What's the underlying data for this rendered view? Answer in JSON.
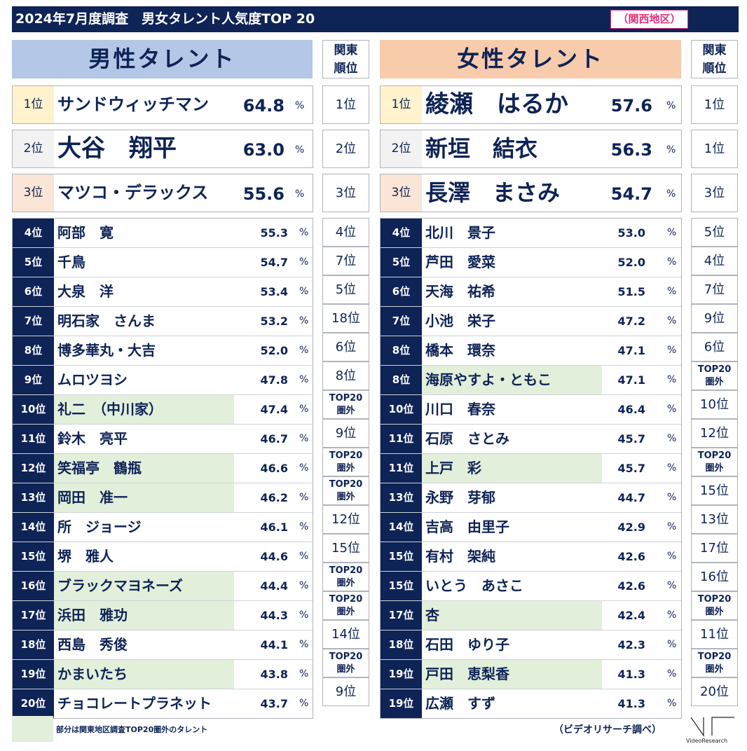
{
  "title": "2024年7月度調査　男女タレント人気度TOP 20",
  "region": "（関西地区）",
  "kanto_header": [
    "関東",
    "順位"
  ],
  "pct": "%",
  "male": {
    "header": "男性タレント",
    "top3": [
      {
        "rank": "1位",
        "name": "サンドウィッチマン",
        "score": "64.8",
        "kanto": "1位"
      },
      {
        "rank": "2位",
        "name": "大谷　翔平",
        "score": "63.0",
        "kanto": "2位"
      },
      {
        "rank": "3位",
        "name": "マツコ・デラックス",
        "score": "55.6",
        "kanto": "3位"
      }
    ],
    "rows": [
      {
        "rank": "4位",
        "name": "阿部　寛",
        "score": "55.3",
        "kanto": "4位"
      },
      {
        "rank": "5位",
        "name": "千鳥",
        "score": "54.7",
        "kanto": "7位"
      },
      {
        "rank": "6位",
        "name": "大泉　洋",
        "score": "53.4",
        "kanto": "5位"
      },
      {
        "rank": "7位",
        "name": "明石家　さんま",
        "score": "53.2",
        "kanto": "18位"
      },
      {
        "rank": "8位",
        "name": "博多華丸・大吉",
        "score": "52.0",
        "kanto": "6位"
      },
      {
        "rank": "9位",
        "name": "ムロツヨシ",
        "score": "47.8",
        "kanto": "8位"
      },
      {
        "rank": "10位",
        "name": "礼二　（中川家）",
        "score": "47.4",
        "kanto": "TOP20\n圏外",
        "hl": true
      },
      {
        "rank": "11位",
        "name": "鈴木　亮平",
        "score": "46.7",
        "kanto": "9位"
      },
      {
        "rank": "12位",
        "name": "笑福亭　鶴瓶",
        "score": "46.6",
        "kanto": "TOP20\n圏外",
        "hl": true
      },
      {
        "rank": "13位",
        "name": "岡田　准一",
        "score": "46.2",
        "kanto": "TOP20\n圏外",
        "hl": true
      },
      {
        "rank": "14位",
        "name": "所　ジョージ",
        "score": "46.1",
        "kanto": "12位"
      },
      {
        "rank": "15位",
        "name": "堺　雅人",
        "score": "44.6",
        "kanto": "15位"
      },
      {
        "rank": "16位",
        "name": "ブラックマヨネーズ",
        "score": "44.4",
        "kanto": "TOP20\n圏外",
        "hl": true
      },
      {
        "rank": "17位",
        "name": "浜田　雅功",
        "score": "44.3",
        "kanto": "TOP20\n圏外",
        "hl": true
      },
      {
        "rank": "18位",
        "name": "西島　秀俊",
        "score": "44.1",
        "kanto": "14位"
      },
      {
        "rank": "19位",
        "name": "かまいたち",
        "score": "43.8",
        "kanto": "TOP20\n圏外",
        "hl": true
      },
      {
        "rank": "20位",
        "name": "チョコレートプラネット",
        "score": "43.7",
        "kanto": "9位"
      }
    ]
  },
  "female": {
    "header": "女性タレント",
    "top3": [
      {
        "rank": "1位",
        "name": "綾瀬　はるか",
        "score": "57.6",
        "kanto": "1位"
      },
      {
        "rank": "2位",
        "name": "新垣　結衣",
        "score": "56.3",
        "kanto": "1位"
      },
      {
        "rank": "3位",
        "name": "長澤　まさみ",
        "score": "54.7",
        "kanto": "3位"
      }
    ],
    "rows": [
      {
        "rank": "4位",
        "name": "北川　景子",
        "score": "53.0",
        "kanto": "5位"
      },
      {
        "rank": "5位",
        "name": "芦田　愛菜",
        "score": "52.0",
        "kanto": "4位"
      },
      {
        "rank": "6位",
        "name": "天海　祐希",
        "score": "51.5",
        "kanto": "7位"
      },
      {
        "rank": "7位",
        "name": "小池　栄子",
        "score": "47.2",
        "kanto": "9位"
      },
      {
        "rank": "8位",
        "name": "橋本　環奈",
        "score": "47.1",
        "kanto": "6位"
      },
      {
        "rank": "8位",
        "name": "海原やすよ・ともこ",
        "score": "47.1",
        "kanto": "TOP20\n圏外",
        "hl": true
      },
      {
        "rank": "10位",
        "name": "川口　春奈",
        "score": "46.4",
        "kanto": "10位"
      },
      {
        "rank": "11位",
        "name": "石原　さとみ",
        "score": "45.7",
        "kanto": "12位"
      },
      {
        "rank": "11位",
        "name": "上戸　彩",
        "score": "45.7",
        "kanto": "TOP20\n圏外",
        "hl": true
      },
      {
        "rank": "13位",
        "name": "永野　芽郁",
        "score": "44.7",
        "kanto": "15位"
      },
      {
        "rank": "14位",
        "name": "吉高　由里子",
        "score": "42.9",
        "kanto": "13位"
      },
      {
        "rank": "15位",
        "name": "有村　架純",
        "score": "42.6",
        "kanto": "17位"
      },
      {
        "rank": "15位",
        "name": "いとう　あさこ",
        "score": "42.6",
        "kanto": "16位"
      },
      {
        "rank": "17位",
        "name": "杏",
        "score": "42.4",
        "kanto": "TOP20\n圏外",
        "hl": true
      },
      {
        "rank": "18位",
        "name": "石田　ゆり子",
        "score": "42.3",
        "kanto": "11位"
      },
      {
        "rank": "19位",
        "name": "戸田　恵梨香",
        "score": "41.3",
        "kanto": "TOP20\n圏外",
        "hl": true
      },
      {
        "rank": "19位",
        "name": "広瀬　すず",
        "score": "41.3",
        "kanto": "20位"
      }
    ]
  },
  "colors": {
    "navy": "#0e2356",
    "male_header": "#b4c7e7",
    "female_header": "#f8cbad",
    "rank1": "#fff2cc",
    "rank2": "#f2f2f2",
    "rank3": "#fbe5d6",
    "highlight": "#e2efda",
    "region_accent": "#e0307a"
  },
  "legend": "部分は関東地区調査TOP20圏外のタレント",
  "source": "（ビデオリサーチ調べ）",
  "logo_text": "VideoResearch"
}
